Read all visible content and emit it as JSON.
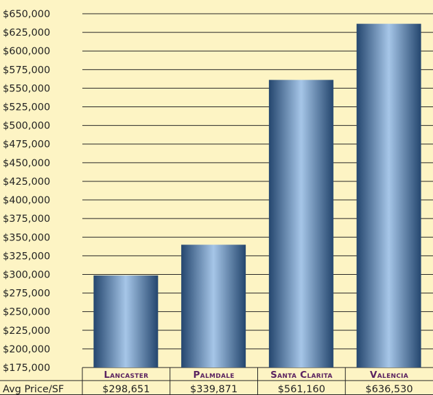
{
  "chart_data": {
    "type": "bar",
    "title": "",
    "xlabel": "",
    "ylabel": "",
    "categories": [
      "Lancaster",
      "Palmdale",
      "Santa Clarita",
      "Valencia"
    ],
    "values": [
      298651,
      339871,
      561160,
      636530
    ],
    "value_labels": [
      "$298,651",
      "$339,871",
      "$561,160",
      "$636,530"
    ],
    "table_row_label": "Avg Price/SF",
    "ylim": [
      175000,
      650000
    ],
    "y_tick_step": 25000,
    "y_tick_labels": [
      "$650,000",
      "$625,000",
      "$600,000",
      "$575,000",
      "$550,000",
      "$525,000",
      "$500,000",
      "$475,000",
      "$450,000",
      "$425,000",
      "$400,000",
      "$375,000",
      "$350,000",
      "$325,000",
      "$300,000",
      "$275,000",
      "$250,000",
      "$225,000",
      "$200,000",
      "$175,000"
    ],
    "grid": true,
    "legend": "none",
    "colors": {
      "background": "#fdf4c4",
      "bar_edge": "#24466e",
      "bar_center": "#a6c6e8",
      "category_text": "#5a2260"
    }
  }
}
